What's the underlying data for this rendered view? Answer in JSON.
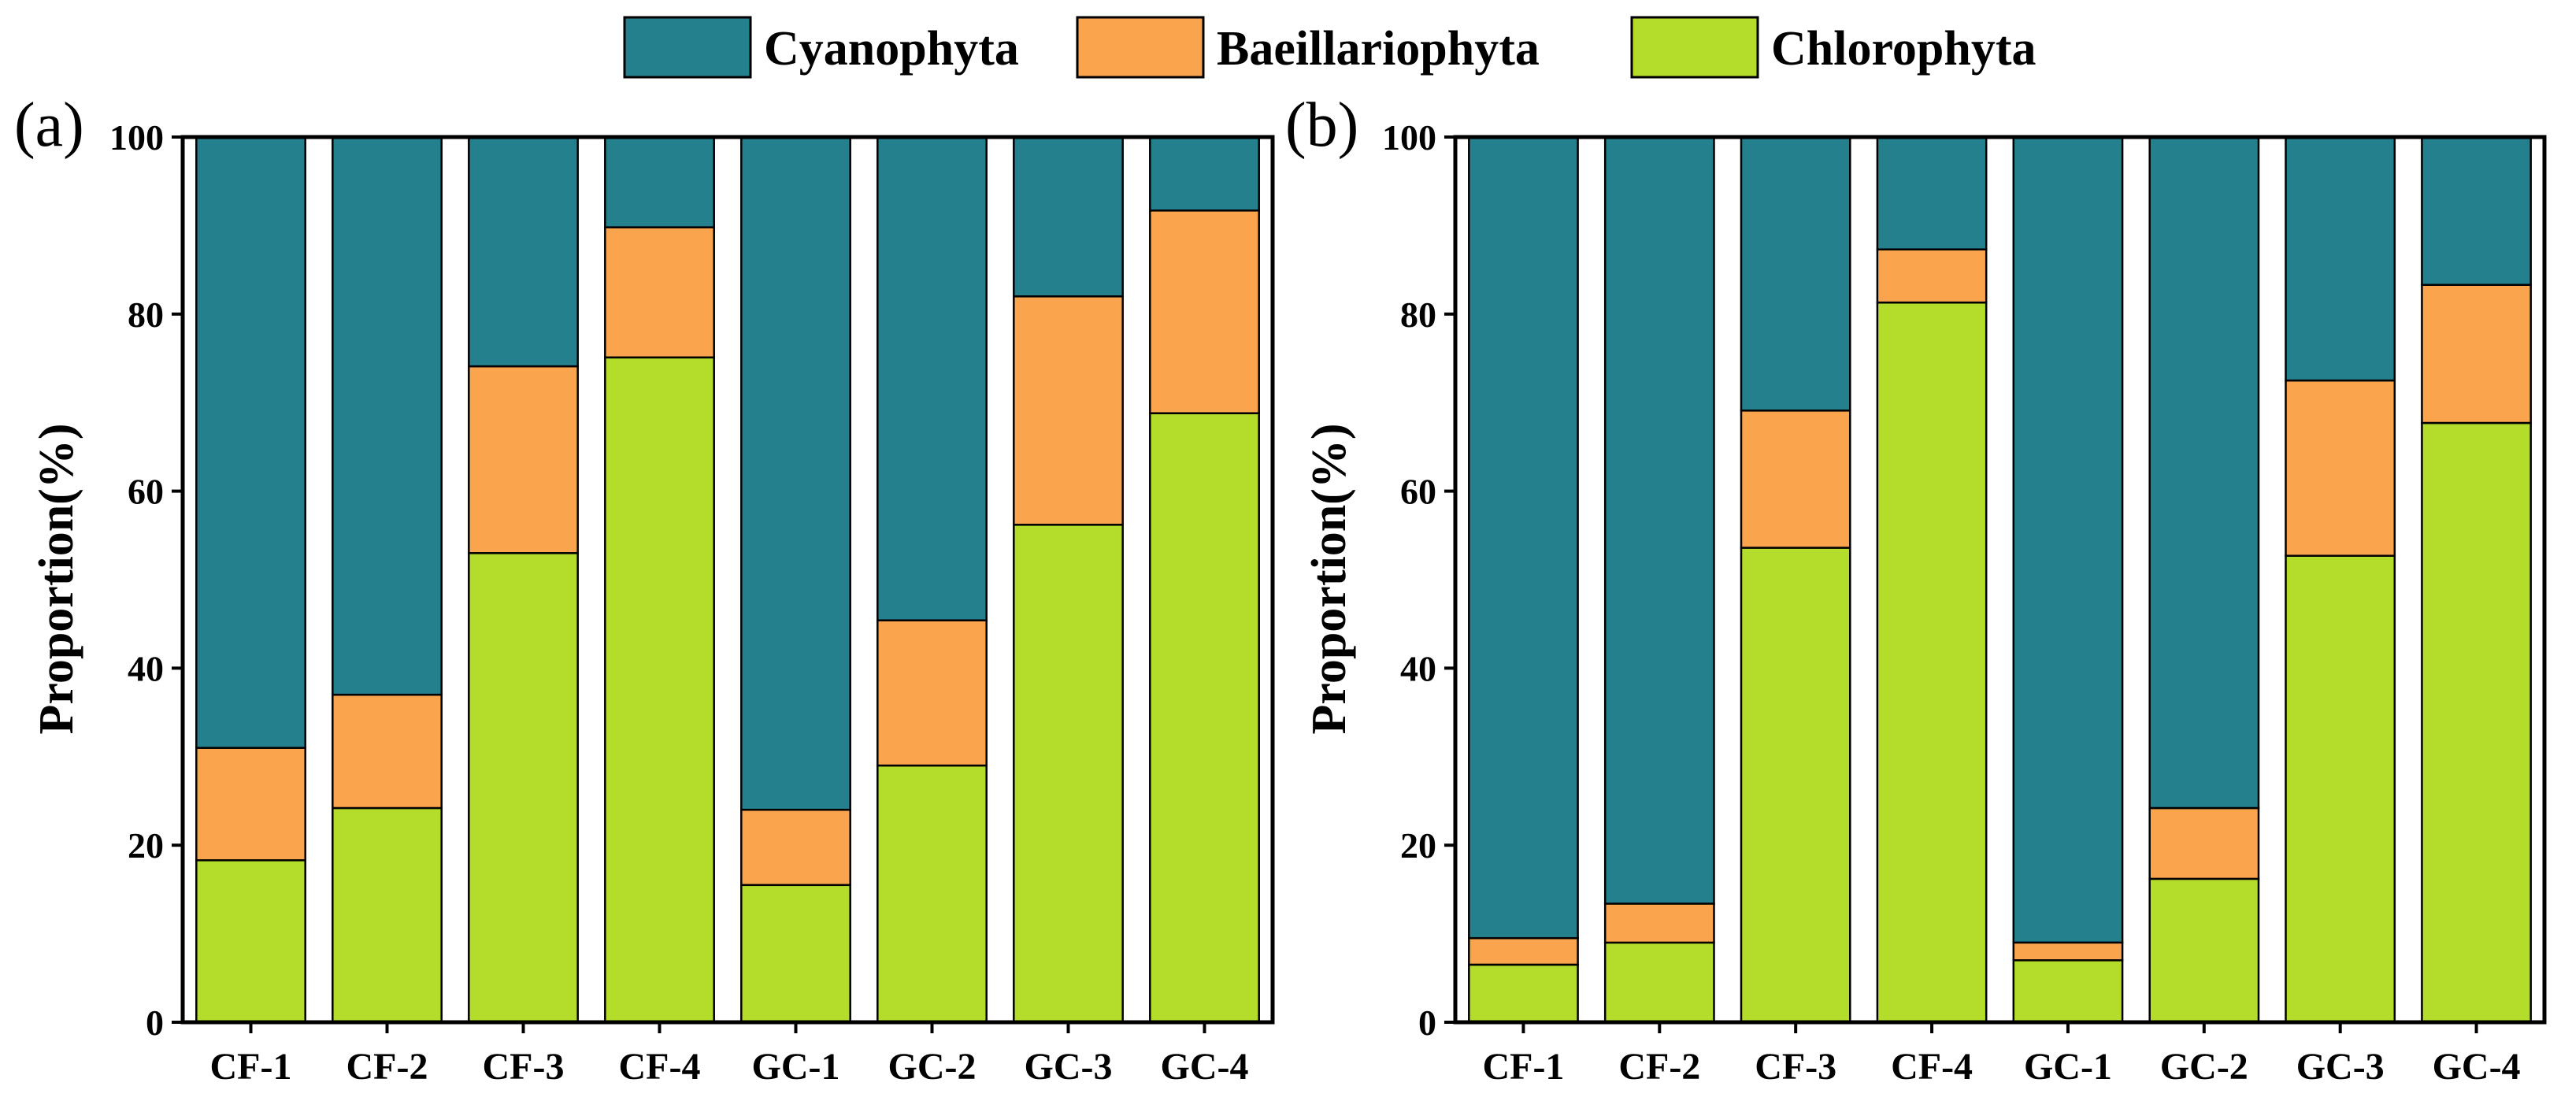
{
  "chart_data": [
    {
      "type": "bar",
      "stacked": true,
      "panel_label": "(a)",
      "ylabel": "Proportion(%)",
      "ylim": [
        0,
        100
      ],
      "yticks": [
        0,
        20,
        40,
        60,
        80,
        100
      ],
      "categories": [
        "CF-1",
        "CF-2",
        "CF-3",
        "CF-4",
        "GC-1",
        "GC-2",
        "GC-3",
        "GC-4"
      ],
      "series": [
        {
          "name": "Chlorophyta",
          "color": "#b3dc2b",
          "values": [
            18.3,
            24.2,
            53.0,
            75.1,
            15.5,
            29.0,
            56.2,
            68.8
          ]
        },
        {
          "name": "Baeillariophyta",
          "color": "#fba44e",
          "values": [
            12.7,
            12.8,
            21.1,
            14.7,
            8.5,
            16.4,
            25.8,
            22.9
          ]
        },
        {
          "name": "Cyanophyta",
          "color": "#23808c",
          "values": [
            69.0,
            63.0,
            25.9,
            10.2,
            76.0,
            54.6,
            18.0,
            8.3
          ]
        }
      ]
    },
    {
      "type": "bar",
      "stacked": true,
      "panel_label": "(b)",
      "ylabel": "Proportion(%)",
      "ylim": [
        0,
        100
      ],
      "yticks": [
        0,
        20,
        40,
        60,
        80,
        100
      ],
      "categories": [
        "CF-1",
        "CF-2",
        "CF-3",
        "CF-4",
        "GC-1",
        "GC-2",
        "GC-3",
        "GC-4"
      ],
      "series": [
        {
          "name": "Chlorophyta",
          "color": "#b3dc2b",
          "values": [
            6.5,
            9.0,
            53.6,
            81.3,
            7.0,
            16.2,
            52.7,
            67.7
          ]
        },
        {
          "name": "Baeillariophyta",
          "color": "#fba44e",
          "values": [
            3.0,
            4.4,
            15.5,
            6.0,
            2.0,
            8.0,
            19.8,
            15.6
          ]
        },
        {
          "name": "Cyanophyta",
          "color": "#23808c",
          "values": [
            90.5,
            86.6,
            30.9,
            12.7,
            91.0,
            75.8,
            27.5,
            16.7
          ]
        }
      ]
    }
  ],
  "legend": [
    {
      "name": "Cyanophyta",
      "color": "#23808c"
    },
    {
      "name": "Baeillariophyta",
      "color": "#fba44e"
    },
    {
      "name": "Chlorophyta",
      "color": "#b3dc2b"
    }
  ]
}
